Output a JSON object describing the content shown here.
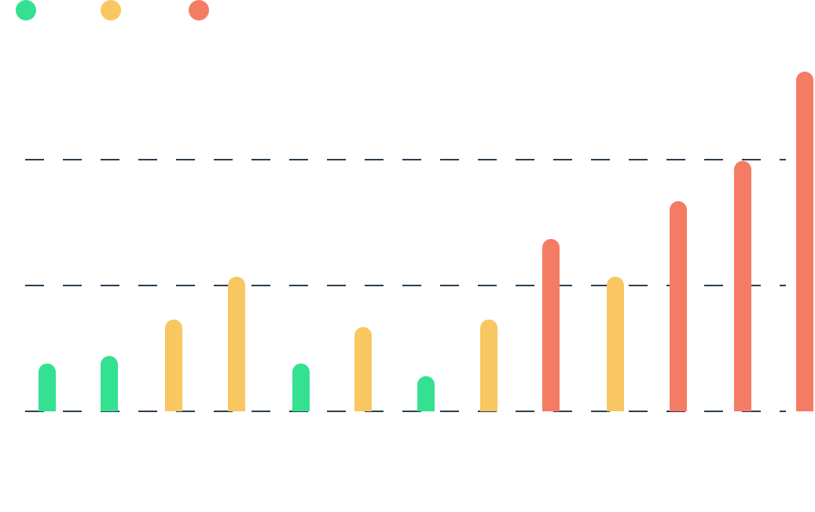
{
  "colors": {
    "green": "#34e190",
    "yellow": "#f9c762",
    "red": "#f47c64",
    "grid": "#2c3e50"
  },
  "legend": {
    "placement": "top-left",
    "items": [
      {
        "label": "",
        "color": "#34e190"
      },
      {
        "label": "",
        "color": "#f9c762"
      },
      {
        "label": "",
        "color": "#f47c64"
      }
    ]
  },
  "chart_data": {
    "type": "bar",
    "title": "",
    "xlabel": "",
    "ylabel": "",
    "ylim": [
      0,
      3
    ],
    "grid": true,
    "gridlines": [
      0,
      1,
      2
    ],
    "categories": [
      "",
      "",
      "",
      "",
      "",
      "",
      "",
      "",
      "",
      "",
      "",
      "",
      ""
    ],
    "values": [
      0.38,
      0.44,
      0.73,
      1.07,
      0.38,
      0.67,
      0.28,
      0.73,
      1.37,
      1.07,
      1.67,
      1.99,
      2.7
    ],
    "bar_colors": [
      "#34e190",
      "#34e190",
      "#f9c762",
      "#f9c762",
      "#34e190",
      "#f9c762",
      "#34e190",
      "#f9c762",
      "#f47c64",
      "#f9c762",
      "#f47c64",
      "#f47c64",
      "#f47c64"
    ]
  }
}
